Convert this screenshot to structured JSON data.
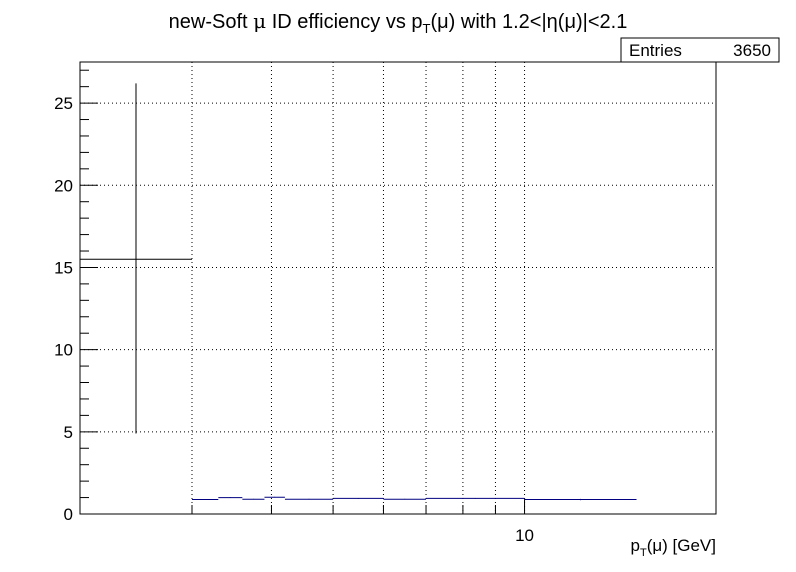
{
  "chart_data": {
    "type": "scatter",
    "title": {
      "prefix": "new-Soft ",
      "mu": "μ",
      "middle": " ID efficiency vs p",
      "sub": "T",
      "after_sub": "(μ) with 1.2<|η(μ)|<2.1"
    },
    "xlabel": {
      "prefix": "p",
      "sub": "T",
      "suffix": "(μ) [GeV]"
    },
    "ylabel": "",
    "x_scale": "log",
    "xlim": [
      2.0,
      20.0
    ],
    "ylim": [
      0,
      27.5
    ],
    "grid": true,
    "x_ticks": [
      3,
      4,
      5,
      6,
      7,
      8,
      9,
      10,
      20
    ],
    "x_tick_labels": [
      {
        "value": 10,
        "label": "10"
      }
    ],
    "y_ticks": [
      0,
      5,
      10,
      15,
      20,
      25
    ],
    "y_tick_labels": [
      "0",
      "5",
      "10",
      "15",
      "20",
      "25"
    ],
    "stats_box": {
      "label": "Entries",
      "value": "3650"
    },
    "points": [
      {
        "xlo": 2.0,
        "xhi": 3.0,
        "y": 15.5,
        "ylo": 4.9,
        "yhi": 26.2,
        "color": "#000000"
      },
      {
        "xlo": 3.0,
        "xhi": 3.3,
        "y": 0.88,
        "ylo": 0.86,
        "yhi": 0.9,
        "color": "#000080"
      },
      {
        "xlo": 3.3,
        "xhi": 3.6,
        "y": 1.0,
        "ylo": 0.98,
        "yhi": 1.02,
        "color": "#000080"
      },
      {
        "xlo": 3.6,
        "xhi": 3.9,
        "y": 0.9,
        "ylo": 0.88,
        "yhi": 0.92,
        "color": "#000080"
      },
      {
        "xlo": 3.9,
        "xhi": 4.2,
        "y": 1.02,
        "ylo": 1.0,
        "yhi": 1.04,
        "color": "#000080"
      },
      {
        "xlo": 4.2,
        "xhi": 5.0,
        "y": 0.9,
        "ylo": 0.88,
        "yhi": 0.92,
        "color": "#000080"
      },
      {
        "xlo": 5.0,
        "xhi": 6.0,
        "y": 0.95,
        "ylo": 0.93,
        "yhi": 0.97,
        "color": "#000080"
      },
      {
        "xlo": 6.0,
        "xhi": 7.0,
        "y": 0.9,
        "ylo": 0.88,
        "yhi": 0.92,
        "color": "#000080"
      },
      {
        "xlo": 7.0,
        "xhi": 10.0,
        "y": 0.95,
        "ylo": 0.93,
        "yhi": 0.97,
        "color": "#000080"
      },
      {
        "xlo": 10.0,
        "xhi": 15.0,
        "y": 0.88,
        "ylo": 0.84,
        "yhi": 0.92,
        "color": "#000080"
      }
    ]
  }
}
